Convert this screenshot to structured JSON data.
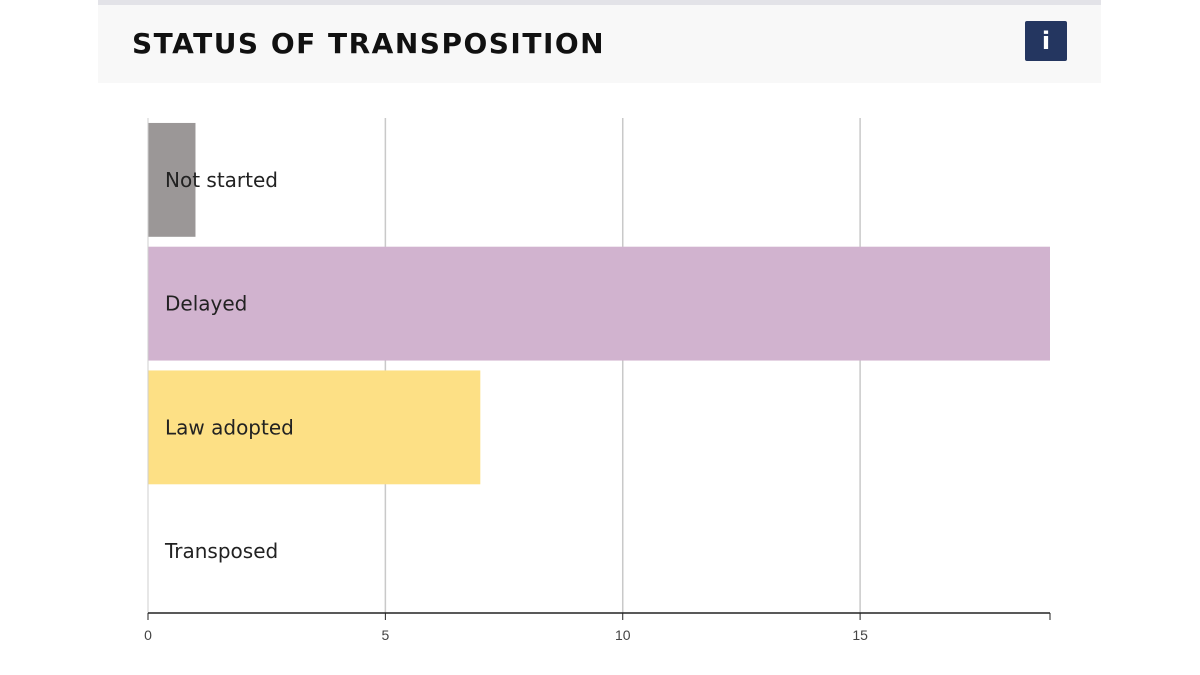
{
  "header": {
    "title": "STATUS OF TRANSPOSITION",
    "info_label": "i",
    "info_icon": "info-icon",
    "accent_color": "#243660"
  },
  "chart_data": {
    "type": "bar",
    "orientation": "horizontal",
    "categories": [
      "Not started",
      "Delayed",
      "Law adopted",
      "Transposed"
    ],
    "values": [
      1,
      19,
      7,
      0
    ],
    "colors": [
      "#9b9797",
      "#d1b3cf",
      "#fde085",
      "#ffffff"
    ],
    "xlim": [
      0,
      19
    ],
    "xticks": [
      0,
      5,
      10,
      15
    ],
    "grid": true,
    "title": "",
    "xlabel": "",
    "ylabel": ""
  }
}
